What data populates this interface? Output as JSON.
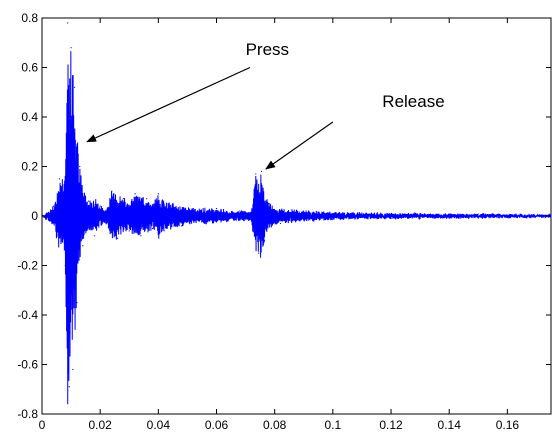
{
  "chart_data": {
    "type": "line",
    "title": "",
    "xlabel": "",
    "ylabel": "",
    "xlim": [
      0,
      0.175
    ],
    "ylim": [
      -0.8,
      0.8
    ],
    "xticks": [
      0,
      0.02,
      0.04,
      0.06,
      0.08,
      0.1,
      0.12,
      0.14,
      0.16
    ],
    "xtick_labels": [
      "0",
      "0.02",
      "0.04",
      "0.06",
      "0.08",
      "0.1",
      "0.12",
      "0.14",
      "0.16"
    ],
    "yticks": [
      -0.8,
      -0.6,
      -0.4,
      -0.2,
      0,
      0.2,
      0.4,
      0.6,
      0.8
    ],
    "ytick_labels": [
      "-0.8",
      "-0.6",
      "-0.4",
      "-0.2",
      "0",
      "0.2",
      "0.4",
      "0.6",
      "0.8"
    ],
    "grid": false,
    "line_color": "#0000ff",
    "series": [
      {
        "name": "",
        "x": [
          0,
          0.004,
          0.006,
          0.008,
          0.0088,
          0.0094,
          0.01,
          0.0106,
          0.0112,
          0.012,
          0.013,
          0.014,
          0.016,
          0.018,
          0.02,
          0.022,
          0.024,
          0.026,
          0.028,
          0.03,
          0.032,
          0.034,
          0.036,
          0.038,
          0.04,
          0.042,
          0.045,
          0.048,
          0.052,
          0.056,
          0.06,
          0.064,
          0.068,
          0.072,
          0.0735,
          0.0745,
          0.0755,
          0.0765,
          0.078,
          0.082,
          0.09,
          0.1,
          0.11,
          0.12,
          0.13,
          0.14,
          0.15,
          0.16,
          0.175
        ],
        "y": [
          0,
          0.04,
          0.15,
          -0.2,
          0.78,
          -0.69,
          0.68,
          -0.62,
          0.52,
          -0.35,
          0.2,
          -0.12,
          0.06,
          -0.08,
          0.04,
          -0.03,
          0.1,
          -0.09,
          0.07,
          -0.06,
          0.09,
          -0.08,
          0.07,
          -0.05,
          0.09,
          -0.06,
          0.05,
          -0.04,
          0.03,
          -0.03,
          0.03,
          -0.02,
          0.02,
          -0.02,
          0.17,
          -0.15,
          0.18,
          -0.1,
          0.05,
          -0.03,
          0.02,
          -0.015,
          0.012,
          -0.01,
          0.01,
          -0.008,
          0.008,
          -0.006,
          0.004
        ]
      }
    ],
    "annotations": [
      {
        "text": "Press",
        "label_x": 0.07,
        "label_y": 0.65,
        "arrow_from_x": 0.0715,
        "arrow_from_y": 0.6,
        "arrow_to_x": 0.0155,
        "arrow_to_y": 0.3
      },
      {
        "text": "Release",
        "label_x": 0.117,
        "label_y": 0.44,
        "arrow_from_x": 0.1,
        "arrow_from_y": 0.38,
        "arrow_to_x": 0.077,
        "arrow_to_y": 0.19
      }
    ]
  }
}
